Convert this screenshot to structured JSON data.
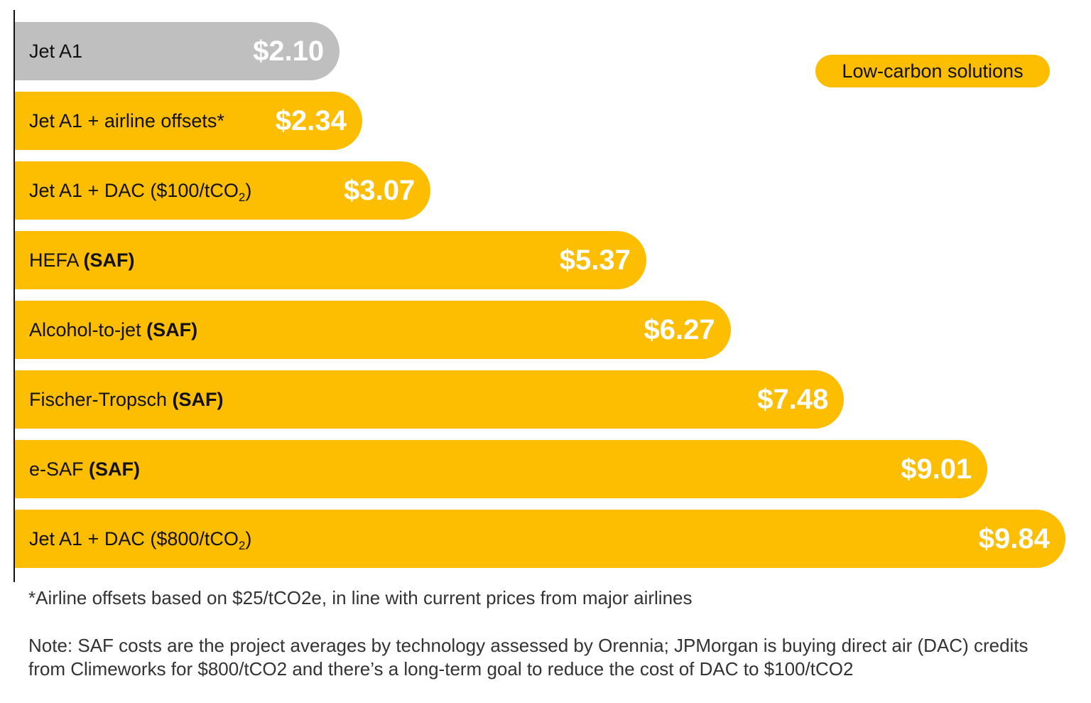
{
  "chart_data": {
    "type": "bar",
    "orientation": "horizontal",
    "unit": "$",
    "categories": [
      {
        "text": "Jet A1",
        "bold": "",
        "sub": "",
        "after": ""
      },
      {
        "text": "Jet A1 + airline offsets*",
        "bold": "",
        "sub": "",
        "after": ""
      },
      {
        "text": "Jet A1 + DAC ($100/tCO",
        "bold": "",
        "sub": "2",
        "after": ")"
      },
      {
        "text": "HEFA ",
        "bold": "(SAF)",
        "sub": "",
        "after": ""
      },
      {
        "text": "Alcohol-to-jet ",
        "bold": "(SAF)",
        "sub": "",
        "after": ""
      },
      {
        "text": "Fischer-Tropsch ",
        "bold": "(SAF)",
        "sub": "",
        "after": ""
      },
      {
        "text": "e-SAF ",
        "bold": "(SAF)",
        "sub": "",
        "after": ""
      },
      {
        "text": "Jet A1 + DAC ($800/tCO",
        "bold": "",
        "sub": "2",
        "after": ")"
      }
    ],
    "values": [
      2.1,
      2.34,
      3.07,
      5.37,
      6.27,
      7.48,
      9.01,
      9.84
    ],
    "value_labels": [
      "$2.10",
      "$2.34",
      "$3.07",
      "$5.37",
      "$6.27",
      "$7.48",
      "$9.01",
      "$9.84"
    ],
    "bar_groups": [
      "baseline",
      "low-carbon",
      "low-carbon",
      "low-carbon",
      "low-carbon",
      "low-carbon",
      "low-carbon",
      "low-carbon"
    ],
    "colors": {
      "baseline": "#bfbfbf",
      "low-carbon": "#fdbd00"
    },
    "legend": {
      "label": "Low-carbon solutions",
      "position": "top-right"
    },
    "grid": false
  },
  "footnote": "*Airline offsets based on $25/tCO2e, in line with current prices from major airlines",
  "note": "Note: SAF costs are the project averages by technology assessed by Orennia; JPMorgan is buying direct air (DAC) credits from Climeworks for $800/tCO2 and there’s a long-term goal to reduce the cost of DAC to $100/tCO2"
}
